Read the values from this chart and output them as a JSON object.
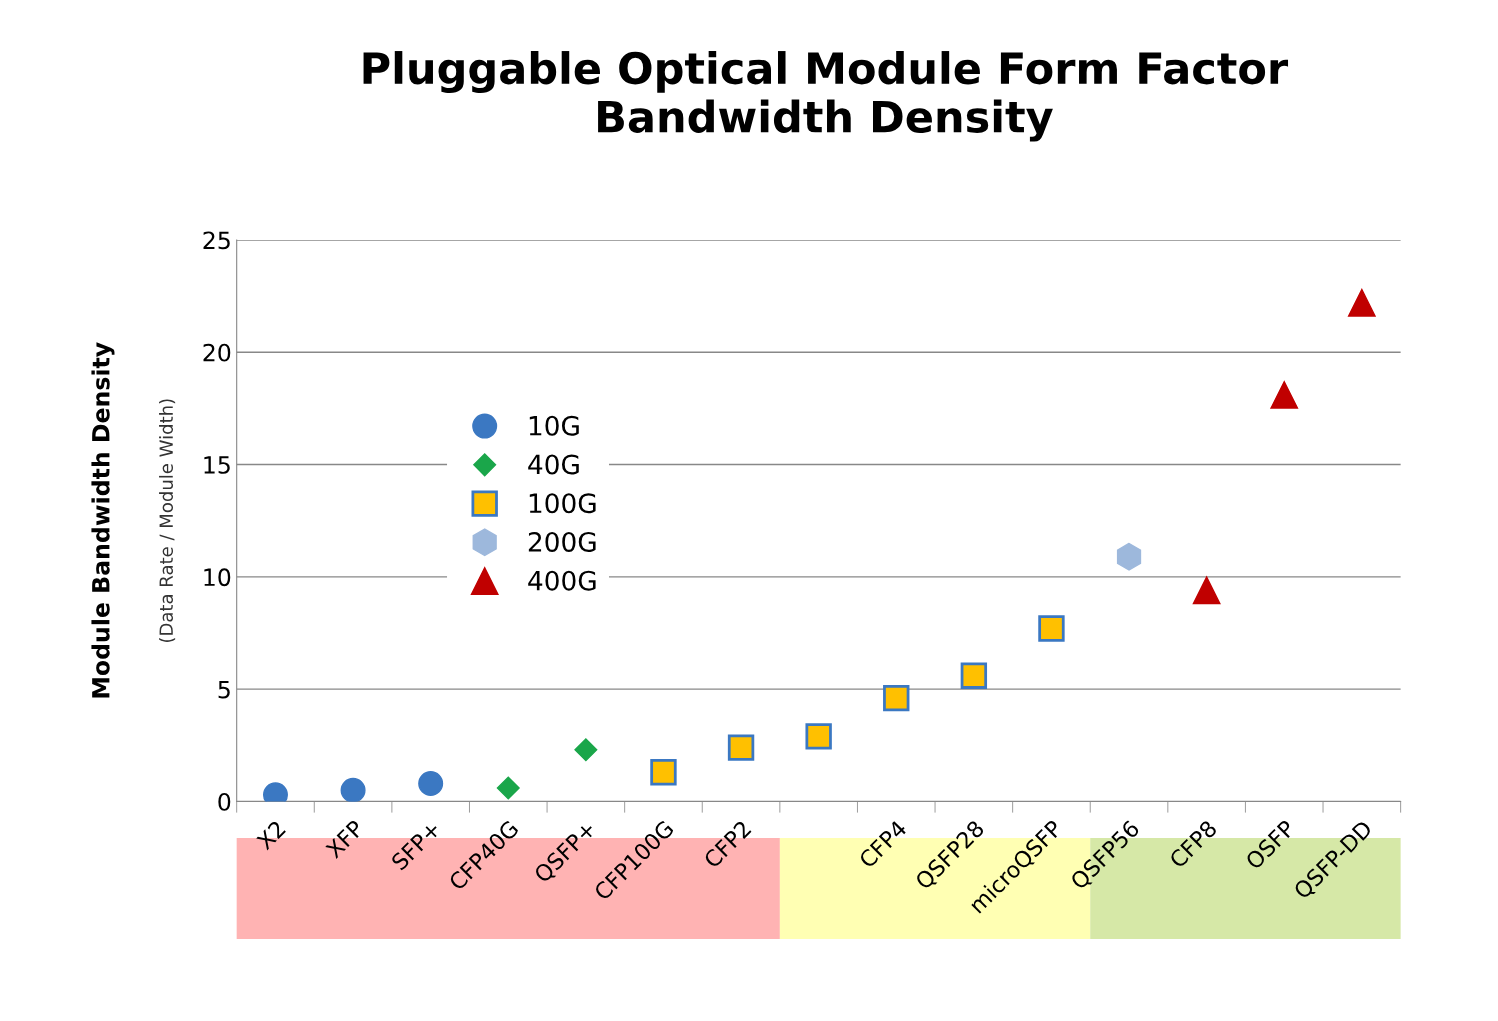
{
  "chart_data": {
    "type": "scatter",
    "title": "Pluggable Optical Module Form Factor\nBandwidth Density",
    "ylabel": "Module Bandwidth Density",
    "annotations": [
      "(Data Rate / Module Width)"
    ],
    "categories": [
      "X2",
      "XFP",
      "SFP+",
      "CFP40G",
      "QSFP+",
      "CFP100G",
      "CFP2",
      null,
      "CFP4",
      "QSFP28",
      "microQSFP",
      "QSFP56",
      "CFP8",
      "OSFP",
      "QSFP-DD"
    ],
    "series": [
      {
        "name": "10G",
        "color": "#3b78c2",
        "marker": "circle",
        "values": [
          0.3,
          0.5,
          0.8,
          null,
          null,
          null,
          null,
          null,
          null,
          null,
          null,
          null,
          null,
          null,
          null
        ]
      },
      {
        "name": "40G",
        "color": "#1aa64a",
        "marker": "diamond",
        "values": [
          null,
          null,
          null,
          0.6,
          2.3,
          null,
          null,
          null,
          null,
          null,
          null,
          null,
          null,
          null,
          null
        ]
      },
      {
        "name": "100G",
        "color": "#ffc000",
        "marker": "square",
        "values": [
          null,
          null,
          null,
          null,
          null,
          1.3,
          2.4,
          2.9,
          4.6,
          5.6,
          7.7,
          null,
          null,
          null,
          null
        ]
      },
      {
        "name": "200G",
        "color": "#9db8dc",
        "values": [
          null,
          null,
          null,
          null,
          null,
          null,
          null,
          null,
          null,
          null,
          null,
          10.9,
          null,
          null,
          null
        ]
      },
      {
        "name": "400G",
        "color": "#c00000",
        "marker": "triangle",
        "values": [
          null,
          null,
          null,
          null,
          null,
          null,
          null,
          null,
          null,
          null,
          null,
          null,
          9.4,
          18.1,
          22.2
        ]
      }
    ],
    "ylim": [
      0,
      25
    ],
    "yticks": [
      0,
      5,
      10,
      15,
      20,
      25
    ],
    "grid": "y",
    "legend": "top left"
  }
}
